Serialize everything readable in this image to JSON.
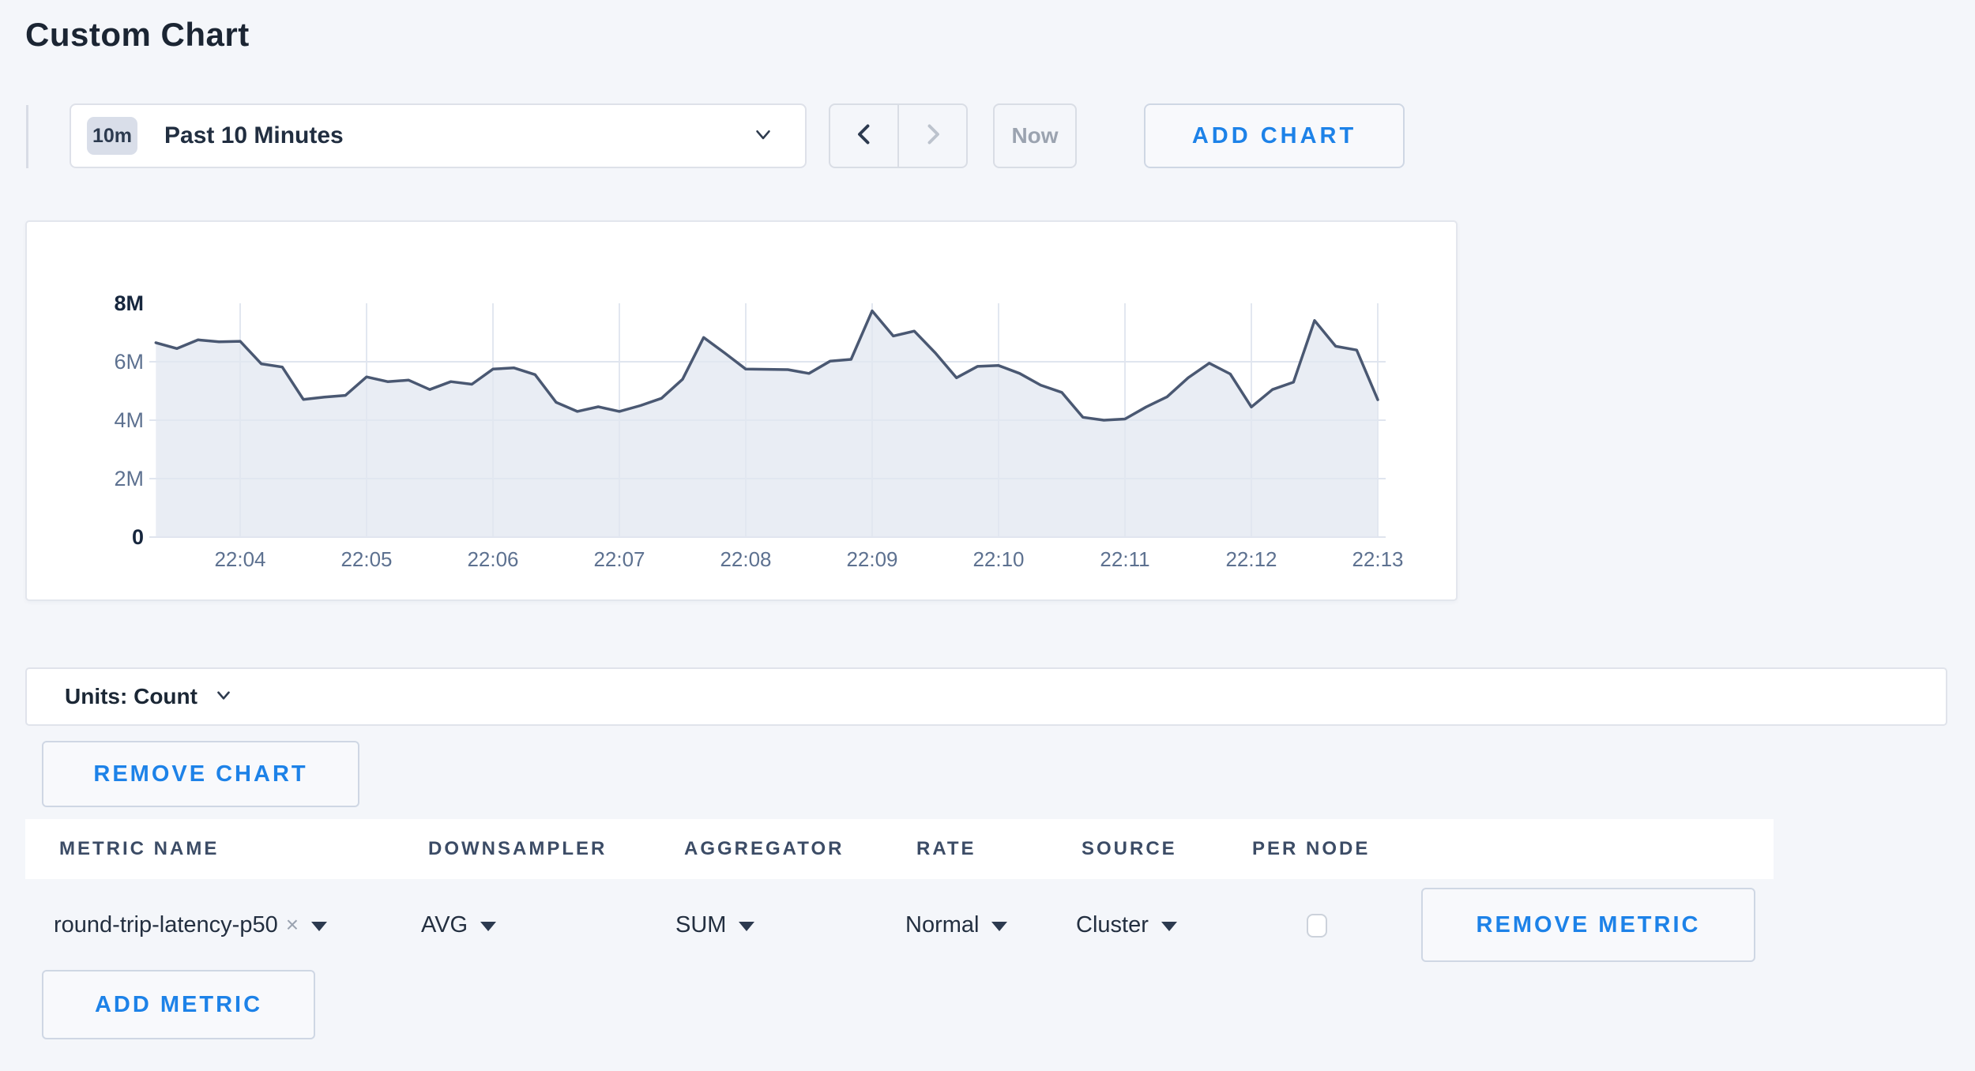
{
  "page": {
    "title": "Custom Chart"
  },
  "colors": {
    "background": "#f4f6fa",
    "accent_blue": "#1d82e8",
    "navy_text": "#212e40",
    "muted_text": "#5d7190",
    "chart_line": "#4a5872",
    "chart_fill": "#e8ebf1",
    "disabled_text": "#9ba3b0"
  },
  "toolbar": {
    "time_badge": "10m",
    "time_label": "Past 10 Minutes",
    "now_label": "Now",
    "add_chart_label": "ADD CHART",
    "prev_enabled": true,
    "next_enabled": false
  },
  "units_bar": {
    "label": "Units: Count"
  },
  "chart_actions": {
    "remove_chart_label": "REMOVE CHART"
  },
  "metrics_table": {
    "headers": [
      "METRIC NAME",
      "DOWNSAMPLER",
      "AGGREGATOR",
      "RATE",
      "SOURCE",
      "PER NODE"
    ],
    "rows": [
      {
        "metric_name": "round-trip-latency-p50",
        "downsampler": "AVG",
        "aggregator": "SUM",
        "rate": "Normal",
        "source": "Cluster",
        "per_node_checked": false,
        "remove_label": "REMOVE METRIC"
      }
    ],
    "add_metric_label": "ADD METRIC"
  },
  "icons": {
    "clear": "×"
  },
  "chart_data": {
    "type": "area",
    "title": "",
    "xlabel": "",
    "ylabel": "",
    "unit": "count",
    "grid": true,
    "legend": false,
    "ylim_millions": [
      0,
      8
    ],
    "y_ticks": [
      {
        "label": "0",
        "value_millions": 0
      },
      {
        "label": "2M",
        "value_millions": 2
      },
      {
        "label": "4M",
        "value_millions": 4
      },
      {
        "label": "6M",
        "value_millions": 6
      },
      {
        "label": "8M",
        "value_millions": 8
      }
    ],
    "x_ticks": [
      "22:04",
      "22:05",
      "22:06",
      "22:07",
      "22:08",
      "22:09",
      "22:10",
      "22:11",
      "22:12",
      "22:13"
    ],
    "series": [
      {
        "name": "round-trip-latency-p50",
        "start_time": "22:03:20",
        "interval_seconds": 10,
        "values_millions": [
          6.65,
          6.45,
          6.75,
          6.68,
          6.7,
          5.93,
          5.82,
          4.71,
          4.79,
          4.85,
          5.48,
          5.32,
          5.37,
          5.05,
          5.32,
          5.23,
          5.75,
          5.79,
          5.56,
          4.61,
          4.3,
          4.46,
          4.3,
          4.5,
          4.75,
          5.4,
          6.83,
          6.3,
          5.75,
          5.74,
          5.73,
          5.6,
          6.02,
          6.08,
          7.74,
          6.88,
          7.05,
          6.3,
          5.45,
          5.84,
          5.87,
          5.6,
          5.2,
          4.95,
          4.1,
          4.0,
          4.04,
          4.45,
          4.8,
          5.45,
          5.95,
          5.58,
          4.45,
          5.05,
          5.3,
          7.41,
          6.53,
          6.4,
          4.7
        ]
      }
    ]
  }
}
